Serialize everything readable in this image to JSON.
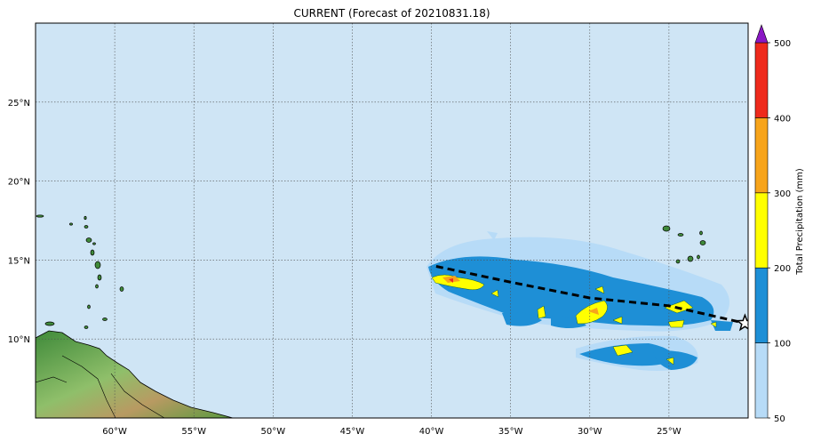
{
  "title": "CURRENT (Forecast of 20210831.18)",
  "map": {
    "lon_range": [
      -65,
      -20
    ],
    "lat_range": [
      5,
      30
    ],
    "lon_ticks": [
      {
        "value": -60,
        "label": "60°W"
      },
      {
        "value": -55,
        "label": "55°W"
      },
      {
        "value": -50,
        "label": "50°W"
      },
      {
        "value": -45,
        "label": "45°W"
      },
      {
        "value": -40,
        "label": "40°W"
      },
      {
        "value": -35,
        "label": "35°W"
      },
      {
        "value": -30,
        "label": "30°W"
      },
      {
        "value": -25,
        "label": "25°W"
      }
    ],
    "lat_ticks": [
      {
        "value": 10,
        "label": "10°N"
      },
      {
        "value": 15,
        "label": "15°N"
      },
      {
        "value": 20,
        "label": "20°N"
      },
      {
        "value": 25,
        "label": "25°N"
      }
    ],
    "ocean_color": "#cfe5f5",
    "grid": "dotted"
  },
  "track": {
    "style": "dashed",
    "points": [
      [
        -39.7,
        14.6
      ],
      [
        -35,
        13.6
      ],
      [
        -30,
        12.6
      ],
      [
        -25,
        12.1
      ],
      [
        -20.2,
        11.0
      ]
    ],
    "marker": "star",
    "marker_point": [
      -20.2,
      11.0
    ]
  },
  "colorbar": {
    "label": "Total Precipitation (mm)",
    "levels": [
      {
        "label": "50",
        "color": "#b7dbf7"
      },
      {
        "label": "100",
        "color": "#1e8fd6"
      },
      {
        "label": "200",
        "color": "#ffff00"
      },
      {
        "label": "300",
        "color": "#f7a41b"
      },
      {
        "label": "400",
        "color": "#ee2a1c"
      },
      {
        "label": "500",
        "color": "#8a18c4"
      }
    ],
    "extend": "max"
  }
}
